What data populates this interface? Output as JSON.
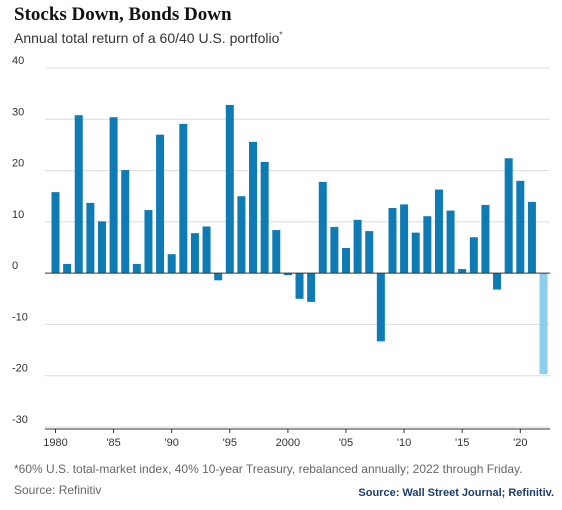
{
  "title": "Stocks Down, Bonds Down",
  "subtitle": "Annual total return of a 60/40 U.S. portfolio",
  "subtitle_marker": "*",
  "footnote": "*60% U.S. total-market index, 40% 10-year Treasury, rebalanced annually; 2022 through Friday.",
  "source_left": "Source: Refinitiv",
  "source_right": "Source: Wall Street Journal; Refinitiv.",
  "colors": {
    "bar": "#0f7bb5",
    "highlight": "#8fcdee",
    "grid": "#dcdcdc",
    "axis": "#333333"
  },
  "chart_data": {
    "type": "bar",
    "title": "Stocks Down, Bonds Down",
    "ylabel": "",
    "xlabel": "",
    "ylim": [
      -30,
      40
    ],
    "yticks": [
      40,
      30,
      20,
      10,
      0,
      -10,
      -20,
      -30
    ],
    "grid": true,
    "x": [
      1980,
      1981,
      1982,
      1983,
      1984,
      1985,
      1986,
      1987,
      1988,
      1989,
      1990,
      1991,
      1992,
      1993,
      1994,
      1995,
      1996,
      1997,
      1998,
      1999,
      2000,
      2001,
      2002,
      2003,
      2004,
      2005,
      2006,
      2007,
      2008,
      2009,
      2010,
      2011,
      2012,
      2013,
      2014,
      2015,
      2016,
      2017,
      2018,
      2019,
      2020,
      2021,
      2022
    ],
    "values": [
      15.8,
      1.8,
      30.8,
      13.7,
      10.1,
      30.4,
      20.1,
      1.8,
      12.3,
      27.0,
      3.7,
      29.1,
      7.8,
      9.1,
      -1.4,
      32.8,
      15.0,
      25.6,
      21.7,
      8.4,
      -0.4,
      -5.0,
      -5.6,
      17.8,
      9.0,
      4.9,
      10.4,
      8.2,
      -13.3,
      12.7,
      13.4,
      7.9,
      11.1,
      16.3,
      12.2,
      0.8,
      7.0,
      13.3,
      -3.2,
      22.4,
      18.0,
      13.9,
      -19.7
    ],
    "highlight_index": 42,
    "xtick_years": [
      1980,
      1985,
      1990,
      1995,
      2000,
      2005,
      2010,
      2015,
      2020
    ],
    "xtick_labels": [
      "1980",
      "'85",
      "'90",
      "'95",
      "2000",
      "'05",
      "'10",
      "'15",
      "'20"
    ]
  }
}
